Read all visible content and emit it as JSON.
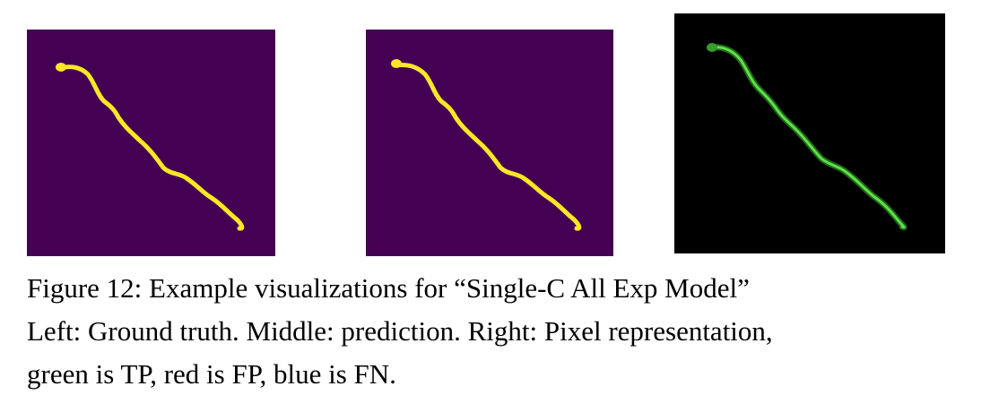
{
  "figure": {
    "caption_lines": [
      "Figure 12: Example visualizations for “Single-C All Exp Model”",
      "Left: Ground truth. Middle: prediction. Right: Pixel representation,",
      "green is TP, red is FP, blue is FN."
    ],
    "panels": [
      {
        "name": "ground-truth",
        "background": "#440154",
        "foreground": "#fde725"
      },
      {
        "name": "prediction",
        "background": "#440154",
        "foreground": "#fde725"
      },
      {
        "name": "pixel-representation",
        "background": "#000000",
        "foreground": "#3fbf2f"
      }
    ]
  }
}
